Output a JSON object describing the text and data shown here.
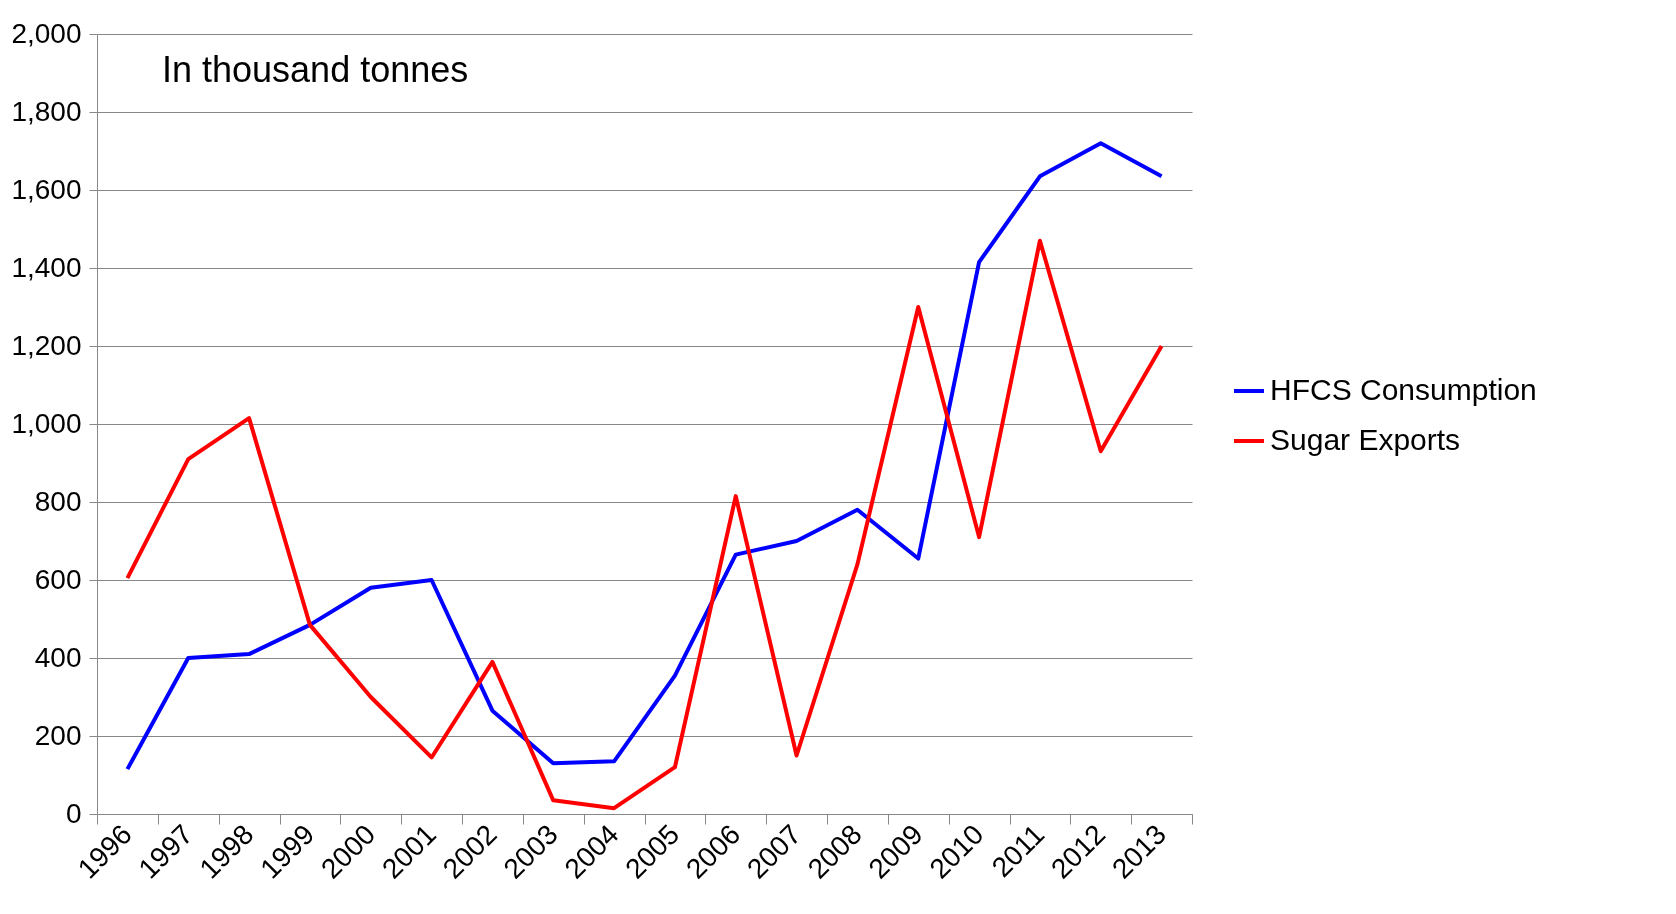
{
  "chart_data": {
    "type": "line",
    "annotations": [
      "In thousand tonnes"
    ],
    "categories": [
      "1996",
      "1997",
      "1998",
      "1999",
      "2000",
      "2001",
      "2002",
      "2003",
      "2004",
      "2005",
      "2006",
      "2007",
      "2008",
      "2009",
      "2010",
      "2011",
      "2012",
      "2013"
    ],
    "series": [
      {
        "name": "HFCS Consumption",
        "color": "#0000ff",
        "values": [
          115,
          400,
          410,
          485,
          580,
          600,
          265,
          130,
          135,
          355,
          665,
          700,
          780,
          655,
          1415,
          1635,
          1720,
          1635
        ]
      },
      {
        "name": "Sugar Exports",
        "color": "#ff0000",
        "values": [
          605,
          910,
          1015,
          485,
          300,
          145,
          390,
          35,
          15,
          120,
          815,
          150,
          640,
          1300,
          710,
          1470,
          930,
          1200
        ]
      }
    ],
    "ylim": [
      0,
      2000
    ],
    "yticks": [
      0,
      200,
      400,
      600,
      800,
      {
        "value": 1000,
        "label": "1,000"
      },
      {
        "value": 1200,
        "label": "1,200"
      },
      {
        "value": 1400,
        "label": "1,400"
      },
      {
        "value": 1600,
        "label": "1,600"
      },
      {
        "value": 1800,
        "label": "1,800"
      },
      {
        "value": 2000,
        "label": "2,000"
      }
    ],
    "grid": "y",
    "legend": "right",
    "marker": "none",
    "line_style": "solid"
  }
}
